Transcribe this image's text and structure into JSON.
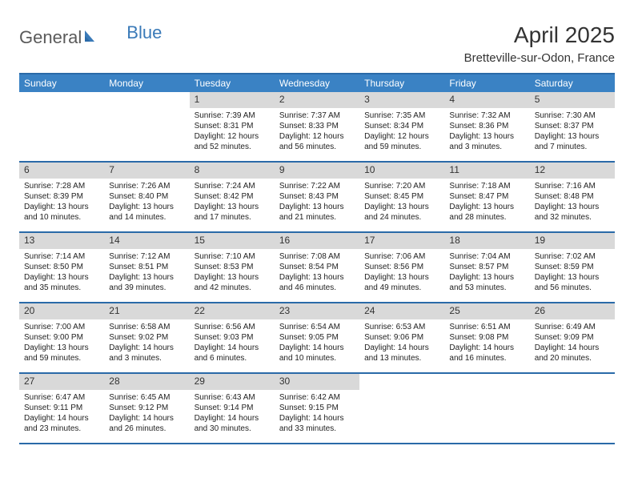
{
  "logo": {
    "text1": "General",
    "text2": "Blue"
  },
  "title": "April 2025",
  "location": "Bretteville-sur-Odon, France",
  "colors": {
    "header_bg": "#3a82c4",
    "header_text": "#ffffff",
    "border": "#2a6aa8",
    "daynum_bg": "#d9d9d9",
    "text": "#222222",
    "logo_gray": "#5a5a5a",
    "logo_blue": "#3a7ab8",
    "page_bg": "#ffffff"
  },
  "day_headers": [
    "Sunday",
    "Monday",
    "Tuesday",
    "Wednesday",
    "Thursday",
    "Friday",
    "Saturday"
  ],
  "weeks": [
    [
      null,
      null,
      {
        "n": "1",
        "sr": "Sunrise: 7:39 AM",
        "ss": "Sunset: 8:31 PM",
        "dl": "Daylight: 12 hours and 52 minutes."
      },
      {
        "n": "2",
        "sr": "Sunrise: 7:37 AM",
        "ss": "Sunset: 8:33 PM",
        "dl": "Daylight: 12 hours and 56 minutes."
      },
      {
        "n": "3",
        "sr": "Sunrise: 7:35 AM",
        "ss": "Sunset: 8:34 PM",
        "dl": "Daylight: 12 hours and 59 minutes."
      },
      {
        "n": "4",
        "sr": "Sunrise: 7:32 AM",
        "ss": "Sunset: 8:36 PM",
        "dl": "Daylight: 13 hours and 3 minutes."
      },
      {
        "n": "5",
        "sr": "Sunrise: 7:30 AM",
        "ss": "Sunset: 8:37 PM",
        "dl": "Daylight: 13 hours and 7 minutes."
      }
    ],
    [
      {
        "n": "6",
        "sr": "Sunrise: 7:28 AM",
        "ss": "Sunset: 8:39 PM",
        "dl": "Daylight: 13 hours and 10 minutes."
      },
      {
        "n": "7",
        "sr": "Sunrise: 7:26 AM",
        "ss": "Sunset: 8:40 PM",
        "dl": "Daylight: 13 hours and 14 minutes."
      },
      {
        "n": "8",
        "sr": "Sunrise: 7:24 AM",
        "ss": "Sunset: 8:42 PM",
        "dl": "Daylight: 13 hours and 17 minutes."
      },
      {
        "n": "9",
        "sr": "Sunrise: 7:22 AM",
        "ss": "Sunset: 8:43 PM",
        "dl": "Daylight: 13 hours and 21 minutes."
      },
      {
        "n": "10",
        "sr": "Sunrise: 7:20 AM",
        "ss": "Sunset: 8:45 PM",
        "dl": "Daylight: 13 hours and 24 minutes."
      },
      {
        "n": "11",
        "sr": "Sunrise: 7:18 AM",
        "ss": "Sunset: 8:47 PM",
        "dl": "Daylight: 13 hours and 28 minutes."
      },
      {
        "n": "12",
        "sr": "Sunrise: 7:16 AM",
        "ss": "Sunset: 8:48 PM",
        "dl": "Daylight: 13 hours and 32 minutes."
      }
    ],
    [
      {
        "n": "13",
        "sr": "Sunrise: 7:14 AM",
        "ss": "Sunset: 8:50 PM",
        "dl": "Daylight: 13 hours and 35 minutes."
      },
      {
        "n": "14",
        "sr": "Sunrise: 7:12 AM",
        "ss": "Sunset: 8:51 PM",
        "dl": "Daylight: 13 hours and 39 minutes."
      },
      {
        "n": "15",
        "sr": "Sunrise: 7:10 AM",
        "ss": "Sunset: 8:53 PM",
        "dl": "Daylight: 13 hours and 42 minutes."
      },
      {
        "n": "16",
        "sr": "Sunrise: 7:08 AM",
        "ss": "Sunset: 8:54 PM",
        "dl": "Daylight: 13 hours and 46 minutes."
      },
      {
        "n": "17",
        "sr": "Sunrise: 7:06 AM",
        "ss": "Sunset: 8:56 PM",
        "dl": "Daylight: 13 hours and 49 minutes."
      },
      {
        "n": "18",
        "sr": "Sunrise: 7:04 AM",
        "ss": "Sunset: 8:57 PM",
        "dl": "Daylight: 13 hours and 53 minutes."
      },
      {
        "n": "19",
        "sr": "Sunrise: 7:02 AM",
        "ss": "Sunset: 8:59 PM",
        "dl": "Daylight: 13 hours and 56 minutes."
      }
    ],
    [
      {
        "n": "20",
        "sr": "Sunrise: 7:00 AM",
        "ss": "Sunset: 9:00 PM",
        "dl": "Daylight: 13 hours and 59 minutes."
      },
      {
        "n": "21",
        "sr": "Sunrise: 6:58 AM",
        "ss": "Sunset: 9:02 PM",
        "dl": "Daylight: 14 hours and 3 minutes."
      },
      {
        "n": "22",
        "sr": "Sunrise: 6:56 AM",
        "ss": "Sunset: 9:03 PM",
        "dl": "Daylight: 14 hours and 6 minutes."
      },
      {
        "n": "23",
        "sr": "Sunrise: 6:54 AM",
        "ss": "Sunset: 9:05 PM",
        "dl": "Daylight: 14 hours and 10 minutes."
      },
      {
        "n": "24",
        "sr": "Sunrise: 6:53 AM",
        "ss": "Sunset: 9:06 PM",
        "dl": "Daylight: 14 hours and 13 minutes."
      },
      {
        "n": "25",
        "sr": "Sunrise: 6:51 AM",
        "ss": "Sunset: 9:08 PM",
        "dl": "Daylight: 14 hours and 16 minutes."
      },
      {
        "n": "26",
        "sr": "Sunrise: 6:49 AM",
        "ss": "Sunset: 9:09 PM",
        "dl": "Daylight: 14 hours and 20 minutes."
      }
    ],
    [
      {
        "n": "27",
        "sr": "Sunrise: 6:47 AM",
        "ss": "Sunset: 9:11 PM",
        "dl": "Daylight: 14 hours and 23 minutes."
      },
      {
        "n": "28",
        "sr": "Sunrise: 6:45 AM",
        "ss": "Sunset: 9:12 PM",
        "dl": "Daylight: 14 hours and 26 minutes."
      },
      {
        "n": "29",
        "sr": "Sunrise: 6:43 AM",
        "ss": "Sunset: 9:14 PM",
        "dl": "Daylight: 14 hours and 30 minutes."
      },
      {
        "n": "30",
        "sr": "Sunrise: 6:42 AM",
        "ss": "Sunset: 9:15 PM",
        "dl": "Daylight: 14 hours and 33 minutes."
      },
      null,
      null,
      null
    ]
  ]
}
